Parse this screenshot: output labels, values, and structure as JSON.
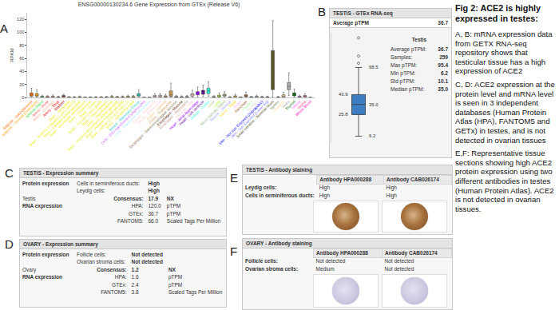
{
  "caption": {
    "title": "Fig 2: ACE2 is highly expressed in testes:",
    "paragraphs": [
      "A, B: mRNA expression data from GETX RNA-seq repository shows that testicular tissue has a high expression of ACE2",
      "C, D: ACE2 expression at the protein level and mRNA level is seen in 3 independent databases (Human Protein Atlas (HPA), FANTOM5 and GETx) in testes, and is not detected in ovarian tissues",
      "E,F: Representative tissue sections showing high ACE2 protein expression using two different antibodies in testes (Human Protein Atlas). ACE2 is not detected in ovarian tissues."
    ]
  },
  "chart_data": [
    {
      "panel_label": "A",
      "type": "box",
      "title": "ENSG00000130234.6 Gene Expression from GTEx (Release V6)",
      "y_label": "RPKM",
      "categories": [
        "Adipose - Subcutaneous",
        "Adipose - Visceral (Omentum)",
        "Adrenal Gland",
        "Artery - Aorta",
        "Artery - Coronary",
        "Artery - Tibial",
        "Bladder",
        "Brain - Amygdala",
        "Brain - Anterior cingulate cortex (BA24)",
        "Brain - Caudate (basal ganglia)",
        "Brain - Cerebellar Hemisphere",
        "Brain - Cerebellum",
        "Brain - Cortex",
        "Brain - Frontal Cortex (BA9)",
        "Brain - Hippocampus",
        "Brain - Hypothalamus",
        "Brain - Nucleus accumbens (basal ganglia)",
        "Brain - Putamen (basal ganglia)",
        "Brain - Spinal cord (cervical c-1)",
        "Brain - Substantia nigra",
        "Breast - Mammary Tissue",
        "Cells - EBV-transformed lymphocytes",
        "Cells - Transformed fibroblasts",
        "Cervix - Ectocervix",
        "Cervix - Endocervix",
        "Colon - Sigmoid",
        "Colon - Transverse",
        "Esophagus - Gastroesophageal Junction",
        "Esophagus - Mucosa",
        "Esophagus - Muscularis",
        "Fallopian Tube",
        "Heart - Atrial Appendage",
        "Heart - Left Ventricle",
        "Kidney - Cortex",
        "Liver",
        "Lung",
        "Minor Salivary Gland",
        "Muscle - Skeletal",
        "Nerve - Tibial",
        "Ovary",
        "Pancreas",
        "Pituitary",
        "Prostate",
        "Skin - Not Sun Exposed (Suprapubic)",
        "Skin - Sun Exposed (Lower leg)",
        "Small Intestine - Terminal Ileum",
        "Spleen",
        "Stomach",
        "Testis",
        "Thyroid",
        "Uterus",
        "Vagina",
        "Whole Blood"
      ],
      "colors": [
        "#FF6600",
        "#FFAA00",
        "#33DD33",
        "#FF5555",
        "#FFAA99",
        "#FF0000",
        "#AA0000",
        "#EEEE00",
        "#EEEE00",
        "#EEEE00",
        "#EEEE00",
        "#EEEE00",
        "#EEEE00",
        "#EEEE00",
        "#EEEE00",
        "#EEEE00",
        "#EEEE00",
        "#EEEE00",
        "#EEEE00",
        "#EEEE00",
        "#33CCCC",
        "#CC66FF",
        "#AAEEFF",
        "#FFCCCC",
        "#FFCCCC",
        "#EEBB77",
        "#CC9955",
        "#8B7355",
        "#552200",
        "#BB9988",
        "#FFCCCC",
        "#9900FF",
        "#660099",
        "#22FFDD",
        "#AABB66",
        "#99FF00",
        "#99BB88",
        "#AAAAFF",
        "#FFD700",
        "#FFAAFF",
        "#995522",
        "#AAFF99",
        "#DDDDDD",
        "#0000FF",
        "#7777FF",
        "#555522",
        "#778855",
        "#FFDD99",
        "#AAAAAA",
        "#006600",
        "#FF66FF",
        "#FF5599",
        "#FF00BB"
      ],
      "lower": [
        0.5,
        0.5,
        0.1,
        0.1,
        0.1,
        0.1,
        0.2,
        0.05,
        0.05,
        0.05,
        0.05,
        0.05,
        0.05,
        0.05,
        0.05,
        0.1,
        0.05,
        0.05,
        0.1,
        0.1,
        0.5,
        0,
        0,
        0.2,
        0.2,
        0.2,
        0.3,
        0.1,
        0.1,
        0.1,
        0.5,
        1,
        1.5,
        2,
        0.1,
        0.2,
        0.5,
        0.05,
        0.2,
        0,
        0.3,
        0.1,
        0.1,
        0.1,
        0.1,
        0.5,
        0.05,
        0.2,
        3,
        0.5,
        0.1,
        0.2,
        0
      ],
      "q1": [
        2,
        2,
        0.5,
        0.4,
        0.5,
        0.3,
        0.8,
        0.2,
        0.2,
        0.3,
        0.2,
        0.2,
        0.2,
        0.2,
        0.3,
        0.4,
        0.3,
        0.3,
        0.5,
        0.4,
        2,
        0.05,
        0.05,
        1,
        1,
        0.8,
        1.5,
        0.4,
        0.3,
        0.4,
        2,
        4,
        5,
        6,
        0.4,
        1,
        2,
        0.2,
        0.8,
        0.1,
        1.2,
        0.3,
        0.5,
        0.3,
        0.3,
        12,
        0.2,
        0.8,
        12,
        2.5,
        0.5,
        0.8,
        0.02
      ],
      "median": [
        4,
        3.5,
        1,
        0.8,
        1,
        0.6,
        1.5,
        0.4,
        0.4,
        0.6,
        0.3,
        0.3,
        0.4,
        0.4,
        0.5,
        0.8,
        0.6,
        0.6,
        1.0,
        0.8,
        3.5,
        0.1,
        0.1,
        2,
        2,
        1.5,
        4,
        0.8,
        0.6,
        0.8,
        4,
        6.5,
        8,
        10,
        0.8,
        2,
        3.5,
        0.4,
        1.5,
        0.3,
        2.5,
        0.6,
        1,
        0.6,
        0.6,
        35,
        0.4,
        2,
        17,
        4.5,
        1,
        1.5,
        0.05
      ],
      "q3": [
        7,
        6,
        1.8,
        1.4,
        2,
        1,
        3,
        0.8,
        0.7,
        1.1,
        0.5,
        0.6,
        0.7,
        0.7,
        0.9,
        1.5,
        1.1,
        1.2,
        1.8,
        1.6,
        6,
        0.2,
        0.2,
        3,
        3.5,
        2.5,
        10,
        1.5,
        1.2,
        1.5,
        6,
        9,
        11,
        14,
        1.4,
        3.5,
        5,
        0.7,
        2.5,
        0.5,
        4,
        1,
        1.8,
        1,
        1,
        72,
        0.8,
        4,
        23,
        7,
        1.8,
        3,
        0.1
      ],
      "upper": [
        14,
        12,
        3.5,
        2.8,
        4,
        2,
        5,
        1.5,
        1.3,
        2.2,
        1,
        1.1,
        1.3,
        1.4,
        1.7,
        3,
        2.1,
        2.3,
        3.5,
        3.1,
        12,
        0.4,
        0.4,
        6,
        6,
        5,
        22,
        3,
        2.5,
        3,
        11,
        16,
        19,
        24,
        2.8,
        7,
        9,
        1.3,
        5,
        1,
        8,
        2,
        3.5,
        2,
        2,
        118,
        1.5,
        8,
        38,
        13,
        3.5,
        6,
        0.2
      ],
      "ylim": [
        0,
        130
      ],
      "yticks": [
        0,
        20,
        40,
        60,
        80,
        100,
        120
      ],
      "grid": false
    },
    {
      "panel_label": "B",
      "type": "box",
      "header": "TESTIS - GTEx RNA-seq",
      "summary": {
        "label": "Average pTPM",
        "value": "36.7"
      },
      "color": "#3d7ec2",
      "lower": 6.2,
      "q1": 25.8,
      "median": 35.0,
      "q3": 43.9,
      "upper": 68.5,
      "value_labels": {
        "upper": "68.5",
        "q3": "43.9",
        "median": "35.0",
        "q1": "25.8",
        "lower": "6.2"
      },
      "outliers": [
        72.4,
        78.9,
        95.4
      ],
      "ylim": [
        0,
        100
      ],
      "tick_labels": false,
      "stats": {
        "title": "Testis",
        "rows": [
          [
            "Average pTPM:",
            "36.7"
          ],
          [
            "Samples:",
            "259"
          ],
          [
            "Max pTPM:",
            "95.4"
          ],
          [
            "Min pTPM:",
            "6.2"
          ],
          [
            "Std pTPM:",
            "10.1"
          ],
          [
            "Median pTPM:",
            "35.0"
          ]
        ]
      }
    }
  ],
  "expression_summaries": [
    {
      "panel_label": "C",
      "header": "TESTIS - Expression summary",
      "protein_label": "Protein expression",
      "tissue": "Testis",
      "protein_rows": [
        [
          "Cells in seminiferous ducts:",
          "High"
        ],
        [
          "Leydig cells:",
          "High"
        ]
      ],
      "consensus": [
        "Consensus:",
        "17.9",
        "NX"
      ],
      "rna_label": "RNA expression",
      "rna_rows": [
        [
          "HPA:",
          "120.0",
          "pTPM"
        ],
        [
          "GTEx:",
          "36.7",
          "pTPM"
        ],
        [
          "FANTOM5:",
          "66.0",
          "Scaled Tags Per Million"
        ]
      ]
    },
    {
      "panel_label": "D",
      "header": "OVARY - Expression summary",
      "protein_label": "Protein expression",
      "tissue": "Ovary",
      "protein_rows": [
        [
          "Follicle cells:",
          "Not detected"
        ],
        [
          "Ovarian stroma cells:",
          "Not detected"
        ]
      ],
      "consensus": [
        "Consensus:",
        "1.2",
        "NX"
      ],
      "rna_label": "RNA expression",
      "rna_rows": [
        [
          "HPA:",
          "1.6",
          "pTPM"
        ],
        [
          "GTEx:",
          "2.4",
          "pTPM"
        ],
        [
          "FANTOM5:",
          "3.8",
          "Scaled Tags Per Million"
        ]
      ]
    }
  ],
  "antibody_staining": [
    {
      "panel_label": "E",
      "header": "TESTIS - Antibody staining",
      "antibodies": [
        "Antibody HPA000288",
        "Antibody CAB026174"
      ],
      "rows": [
        [
          "Leydig cells:",
          "High",
          "High"
        ],
        [
          "Cells in seminiferous ducts:",
          "High",
          "High"
        ]
      ]
    },
    {
      "panel_label": "F",
      "header": "OVARY - Antibody staining",
      "antibodies": [
        "Antibody HPA000288",
        "Antibody CAB026174"
      ],
      "rows": [
        [
          "Follicle cells:",
          "Not detected",
          "Not detected"
        ],
        [
          "Ovarian stroma cells:",
          "Medium",
          "Not detected"
        ]
      ]
    }
  ]
}
